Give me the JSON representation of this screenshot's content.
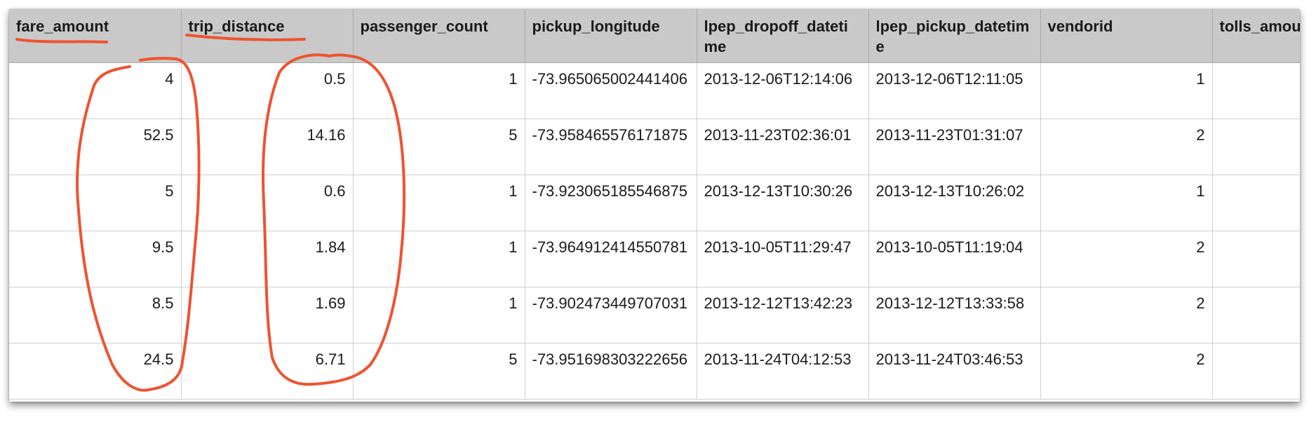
{
  "table": {
    "columns": [
      "fare_amount",
      "trip_distance",
      "passenger_count",
      "pickup_longitude",
      "lpep_dropoff_datetime",
      "lpep_pickup_datetime",
      "vendorid",
      "tolls_amount"
    ],
    "rows": [
      [
        "4",
        "0.5",
        "1",
        "-73.965065002441406",
        "2013-12-06T12:14:06",
        "2013-12-06T12:11:05",
        "1",
        ""
      ],
      [
        "52.5",
        "14.16",
        "5",
        "-73.958465576171875",
        "2013-11-23T02:36:01",
        "2013-11-23T01:31:07",
        "2",
        ""
      ],
      [
        "5",
        "0.6",
        "1",
        "-73.923065185546875",
        "2013-12-13T10:30:26",
        "2013-12-13T10:26:02",
        "1",
        ""
      ],
      [
        "9.5",
        "1.84",
        "1",
        "-73.964912414550781",
        "2013-10-05T11:29:47",
        "2013-10-05T11:19:04",
        "2",
        ""
      ],
      [
        "8.5",
        "1.69",
        "1",
        "-73.902473449707031",
        "2013-12-12T13:42:23",
        "2013-12-12T13:33:58",
        "2",
        ""
      ],
      [
        "24.5",
        "6.71",
        "5",
        "-73.951698303222656",
        "2013-11-24T04:12:53",
        "2013-11-24T03:46:53",
        "2",
        ""
      ]
    ]
  },
  "annotation": {
    "color": "#ef5330",
    "underlined_columns": [
      "fare_amount",
      "trip_distance"
    ],
    "circled_columns": [
      "fare_amount",
      "trip_distance"
    ]
  }
}
